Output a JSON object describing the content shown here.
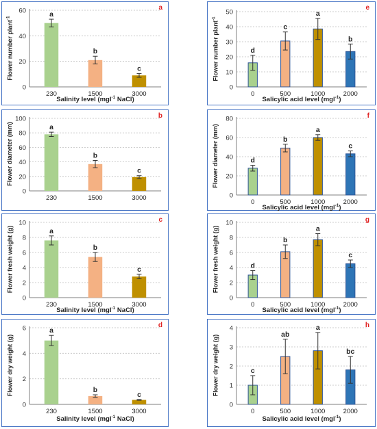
{
  "colors": {
    "green": "#a9d18e",
    "salmon": "#f4b183",
    "gold": "#bf9000",
    "blue": "#2e75b6",
    "letter": "#e02020",
    "grid": "#bfbfbf"
  },
  "chart_data": [
    {
      "id": "a",
      "type": "bar",
      "ylabel": "Flower number plant⁻¹",
      "xlabel": "Salinity level (mgl⁻¹ NaCl)",
      "categories": [
        "230",
        "1500",
        "3000"
      ],
      "values": [
        50,
        21,
        9
      ],
      "errors": [
        3,
        3,
        1.5
      ],
      "sig": [
        "a",
        "b",
        "c"
      ],
      "ylim": [
        0,
        60
      ],
      "yticks": [
        0,
        20,
        40,
        60
      ],
      "colors": [
        "green",
        "salmon",
        "gold"
      ]
    },
    {
      "id": "b",
      "type": "bar",
      "ylabel": "Flower diameter (mm)",
      "xlabel": "",
      "categories": [
        "230",
        "1500",
        "3000"
      ],
      "values": [
        78,
        37,
        19
      ],
      "errors": [
        3,
        5,
        2
      ],
      "sig": [
        "a",
        "b",
        "c"
      ],
      "ylim": [
        0,
        100
      ],
      "yticks": [
        0,
        20,
        40,
        60,
        80,
        100
      ],
      "colors": [
        "green",
        "salmon",
        "gold"
      ]
    },
    {
      "id": "c",
      "type": "bar",
      "ylabel": "Flower fresh weight (g)",
      "xlabel": "Salinity level (mgl⁻¹ NaCl)",
      "categories": [
        "230",
        "1500",
        "3000"
      ],
      "values": [
        7.6,
        5.4,
        2.8
      ],
      "errors": [
        0.6,
        0.6,
        0.3
      ],
      "sig": [
        "a",
        "b",
        "c"
      ],
      "ylim": [
        0,
        10
      ],
      "yticks": [
        0,
        2,
        4,
        6,
        8,
        10
      ],
      "colors": [
        "green",
        "salmon",
        "gold"
      ]
    },
    {
      "id": "d",
      "type": "bar",
      "ylabel": "Flower dry weight (g)",
      "xlabel": "Salinity level (mgl⁻¹ NaCl)",
      "categories": [
        "230",
        "1500",
        "3000"
      ],
      "values": [
        5.0,
        0.65,
        0.35
      ],
      "errors": [
        0.4,
        0.1,
        0.03
      ],
      "sig": [
        "a",
        "b",
        "c"
      ],
      "ylim": [
        0,
        6
      ],
      "yticks": [
        0,
        2,
        4,
        6
      ],
      "colors": [
        "green",
        "salmon",
        "gold"
      ]
    },
    {
      "id": "e",
      "type": "bar",
      "ylabel": "Flower number plant⁻¹",
      "xlabel": "Salicylic acid level (mgl⁻¹)",
      "categories": [
        "0",
        "500",
        "1000",
        "2000"
      ],
      "values": [
        16,
        30.5,
        38.5,
        23.5
      ],
      "errors": [
        5,
        6,
        7,
        5
      ],
      "sig": [
        "d",
        "c",
        "a",
        "b"
      ],
      "ylim": [
        0,
        50
      ],
      "yticks": [
        0,
        10,
        20,
        30,
        40,
        50
      ],
      "colors": [
        "green",
        "salmon",
        "gold",
        "blue"
      ]
    },
    {
      "id": "f",
      "type": "bar",
      "ylabel": "Flower diameter (mm)",
      "xlabel": "Salicylic acid level (mgl⁻¹)",
      "categories": [
        "0",
        "500",
        "1000",
        "2000"
      ],
      "values": [
        28,
        49,
        60,
        43
      ],
      "errors": [
        3,
        4,
        3,
        3
      ],
      "sig": [
        "d",
        "b",
        "a",
        "c"
      ],
      "ylim": [
        0,
        80
      ],
      "yticks": [
        0,
        20,
        40,
        60,
        80
      ],
      "colors": [
        "green",
        "salmon",
        "gold",
        "blue"
      ]
    },
    {
      "id": "g",
      "type": "bar",
      "ylabel": "Flower fresh weight (g)",
      "xlabel": "Salicylic acid level (mgl⁻¹)",
      "categories": [
        "0",
        "500",
        "1000",
        "2000"
      ],
      "values": [
        3.0,
        6.1,
        7.7,
        4.5
      ],
      "errors": [
        0.6,
        0.9,
        0.8,
        0.5
      ],
      "sig": [
        "d",
        "b",
        "a",
        "c"
      ],
      "ylim": [
        0,
        10
      ],
      "yticks": [
        0,
        2,
        4,
        6,
        8,
        10
      ],
      "colors": [
        "green",
        "salmon",
        "gold",
        "blue"
      ]
    },
    {
      "id": "h",
      "type": "bar",
      "ylabel": "Flower dry weight (g)",
      "xlabel": "Salicylic acid level (mgl⁻¹)",
      "categories": [
        "0",
        "500",
        "1000",
        "2000"
      ],
      "values": [
        1.0,
        2.5,
        2.8,
        1.8
      ],
      "errors": [
        0.5,
        0.9,
        0.95,
        0.7
      ],
      "sig": [
        "c",
        "ab",
        "a",
        "bc"
      ],
      "ylim": [
        0,
        4
      ],
      "yticks": [
        0,
        1,
        2,
        3,
        4
      ],
      "colors": [
        "green",
        "salmon",
        "gold",
        "blue"
      ]
    }
  ]
}
